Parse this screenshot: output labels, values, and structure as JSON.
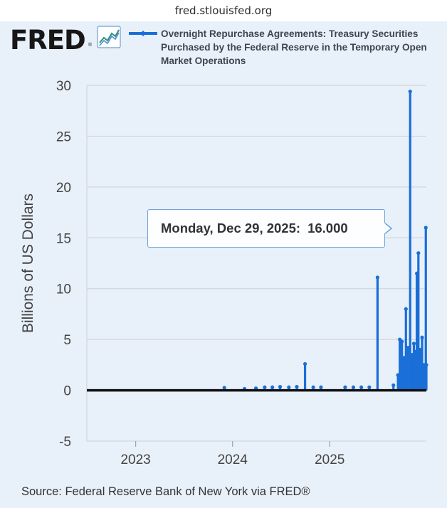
{
  "browser": {
    "url": "fred.stlouisfed.org"
  },
  "brand": {
    "name": "FRED",
    "mark": "®",
    "icon": "line-chart-icon"
  },
  "colors": {
    "series": "#1a6ed8",
    "background": "#e8f0f9",
    "grid": "#d2d6db",
    "zero_line": "#111111"
  },
  "chart_data": {
    "type": "line",
    "legend": "Overnight Repurchase Agreements: Treasury Securities Purchased by the Federal Reserve in the Temporary Open Market Operations",
    "ylabel": "Billions of US Dollars",
    "xlabel": "",
    "ylim": [
      -5,
      30
    ],
    "yticks": [
      "30",
      "25",
      "20",
      "15",
      "10",
      "5",
      "0",
      "-5"
    ],
    "ytick_values": [
      30,
      25,
      20,
      15,
      10,
      5,
      0,
      -5
    ],
    "xlim": [
      "2022-07-01",
      "2025-12-31"
    ],
    "xticks": [
      "2023",
      "2024",
      "2025"
    ],
    "xtick_dates": [
      "2023-01-01",
      "2024-01-01",
      "2025-01-01"
    ],
    "grid": true,
    "series": [
      {
        "name": "Overnight Repurchase Agreements: Treasury Securities Purchased by the Federal Reserve in the Temporary Open Market Operations",
        "spikes": [
          {
            "x": "2023-12-01",
            "y": 0.25
          },
          {
            "x": "2024-02-15",
            "y": 0.15
          },
          {
            "x": "2024-03-29",
            "y": 0.2
          },
          {
            "x": "2024-05-01",
            "y": 0.3
          },
          {
            "x": "2024-05-30",
            "y": 0.3
          },
          {
            "x": "2024-06-28",
            "y": 0.35
          },
          {
            "x": "2024-07-31",
            "y": 0.3
          },
          {
            "x": "2024-08-30",
            "y": 0.35
          },
          {
            "x": "2024-09-30",
            "y": 2.6
          },
          {
            "x": "2024-10-31",
            "y": 0.3
          },
          {
            "x": "2024-11-29",
            "y": 0.3
          },
          {
            "x": "2025-02-28",
            "y": 0.3
          },
          {
            "x": "2025-03-31",
            "y": 0.3
          },
          {
            "x": "2025-04-30",
            "y": 0.3
          },
          {
            "x": "2025-05-30",
            "y": 0.3
          },
          {
            "x": "2025-06-30",
            "y": 11.1
          },
          {
            "x": "2025-08-29",
            "y": 0.5
          },
          {
            "x": "2025-09-15",
            "y": 1.5
          },
          {
            "x": "2025-09-22",
            "y": 5.0
          },
          {
            "x": "2025-09-30",
            "y": 4.8
          },
          {
            "x": "2025-10-08",
            "y": 3.2
          },
          {
            "x": "2025-10-15",
            "y": 8.0
          },
          {
            "x": "2025-10-23",
            "y": 4.2
          },
          {
            "x": "2025-10-31",
            "y": 29.4
          },
          {
            "x": "2025-11-07",
            "y": 3.5
          },
          {
            "x": "2025-11-14",
            "y": 4.6
          },
          {
            "x": "2025-11-21",
            "y": 3.8
          },
          {
            "x": "2025-11-25",
            "y": 11.5
          },
          {
            "x": "2025-12-01",
            "y": 13.5
          },
          {
            "x": "2025-12-08",
            "y": 4.0
          },
          {
            "x": "2025-12-15",
            "y": 5.2
          },
          {
            "x": "2025-12-22",
            "y": 2.5
          },
          {
            "x": "2025-12-29",
            "y": 16.0
          },
          {
            "x": "2025-12-31",
            "y": 2.5
          }
        ]
      }
    ],
    "tooltip": {
      "date": "Monday, Dec 29, 2025:",
      "value": "16.000"
    }
  },
  "footer": {
    "source": "Source: Federal Reserve Bank of New York via FRED®"
  }
}
